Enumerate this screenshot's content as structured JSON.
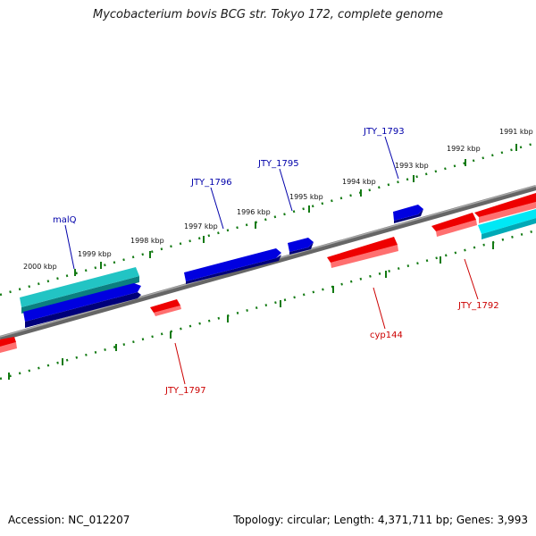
{
  "title": "Mycobacterium bovis BCG str. Tokyo 172, complete genome",
  "footer": {
    "accession": "Accession: NC_012207",
    "summary": "Topology: circular; Length: 4,371,711 bp; Genes: 3,993"
  },
  "ticks": [
    "2000 kbp",
    "1999 kbp",
    "1998 kbp",
    "1997 kbp",
    "1996 kbp",
    "1995 kbp",
    "1994 kbp",
    "1993 kbp",
    "1992 kbp",
    "1991 kbp"
  ],
  "colors": {
    "forward": "#0000dd",
    "reverse": "#ee0000",
    "teal": "#11b3b3",
    "cyan": "#00e0f0",
    "backbone": "#808080",
    "ticks": "#137a13",
    "label_forward": "#0000aa",
    "label_reverse": "#cc0000"
  },
  "labels": {
    "malQ": "malQ",
    "jty1796": "JTY_1796",
    "jty1795": "JTY_1795",
    "jty1793": "JTY_1793",
    "jty1797": "JTY_1797",
    "cyp144": "cyp144",
    "jty1792": "JTY_1792"
  }
}
